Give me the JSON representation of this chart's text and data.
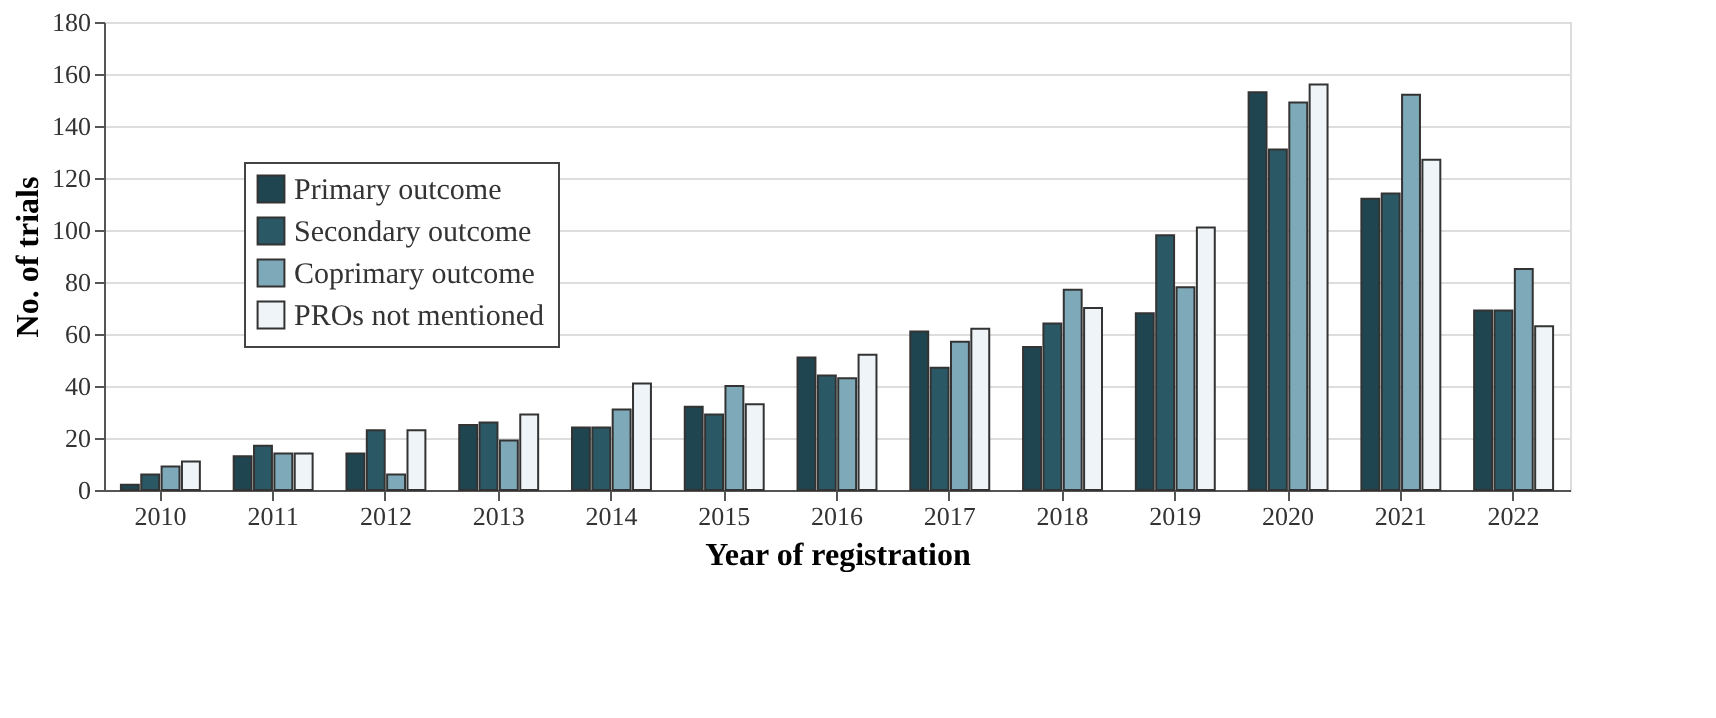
{
  "chart_data": {
    "type": "bar",
    "xlabel": "Year of registration",
    "ylabel": "No. of trials",
    "categories": [
      "2010",
      "2011",
      "2012",
      "2013",
      "2014",
      "2015",
      "2016",
      "2017",
      "2018",
      "2019",
      "2020",
      "2021",
      "2022"
    ],
    "series": [
      {
        "name": "Primary outcome",
        "color": "#1f4550",
        "values": [
          2,
          13,
          14,
          25,
          24,
          32,
          51,
          61,
          55,
          68,
          153,
          112,
          69
        ]
      },
      {
        "name": "Secondary outcome",
        "color": "#2b5865",
        "values": [
          6,
          17,
          23,
          26,
          24,
          29,
          44,
          47,
          64,
          98,
          131,
          114,
          69
        ]
      },
      {
        "name": "Coprimary outcome",
        "color": "#7ea9b8",
        "values": [
          9,
          14,
          6,
          19,
          31,
          40,
          43,
          57,
          77,
          78,
          149,
          152,
          85
        ]
      },
      {
        "name": "PROs not mentioned",
        "color": "#eef4f7",
        "values": [
          11,
          14,
          23,
          29,
          41,
          33,
          52,
          62,
          70,
          101,
          156,
          127,
          63
        ]
      }
    ],
    "ylim": [
      0,
      180
    ],
    "yticks": [
      0,
      20,
      40,
      60,
      80,
      100,
      120,
      140,
      160,
      180
    ],
    "grid": "y",
    "legend": "top left"
  }
}
